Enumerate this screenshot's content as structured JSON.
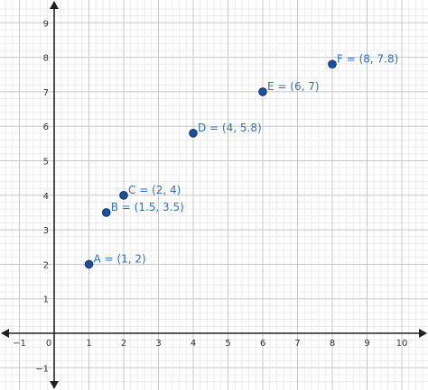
{
  "chart_data": {
    "type": "scatter",
    "title": "",
    "xlabel": "",
    "ylabel": "",
    "xlim": [
      -1.4,
      10.6
    ],
    "ylim": [
      -1.5,
      9.5
    ],
    "x_ticks": [
      "-1",
      "0",
      "1",
      "2",
      "3",
      "4",
      "5",
      "6",
      "7",
      "8",
      "9",
      "10"
    ],
    "y_ticks": [
      "-1",
      "1",
      "2",
      "3",
      "4",
      "5",
      "6",
      "7",
      "8",
      "9"
    ],
    "origin_label": "0",
    "grid": true,
    "minor_grid": true,
    "point_color": "#1e4f9c",
    "label_color": "#2f73c8",
    "points": [
      {
        "name": "A",
        "x": 1,
        "y": 2,
        "label": "A = (1, 2)"
      },
      {
        "name": "B",
        "x": 1.5,
        "y": 3.5,
        "label": "B = (1.5, 3.5)"
      },
      {
        "name": "C",
        "x": 2,
        "y": 4,
        "label": "C = (2, 4)"
      },
      {
        "name": "D",
        "x": 4,
        "y": 5.8,
        "label": "D = (4, 5.8)"
      },
      {
        "name": "E",
        "x": 6,
        "y": 7,
        "label": "E = (6, 7)"
      },
      {
        "name": "F",
        "x": 8,
        "y": 7.8,
        "label": "F = (8, 7.8)"
      }
    ]
  }
}
